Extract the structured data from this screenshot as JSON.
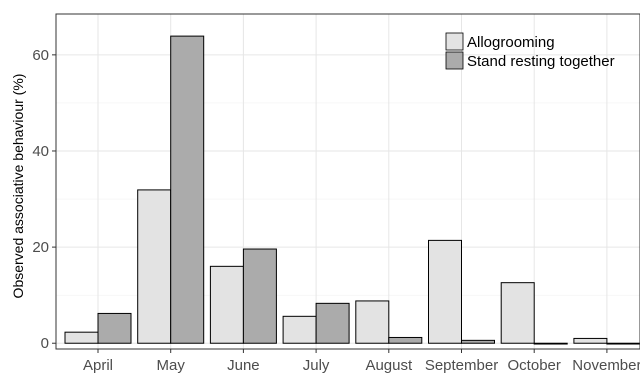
{
  "chart_data": {
    "type": "bar",
    "title": "",
    "xlabel": "",
    "ylabel": "Observed associative behaviour (%)",
    "categories": [
      "April",
      "May",
      "June",
      "July",
      "August",
      "September",
      "October",
      "November"
    ],
    "series": [
      {
        "name": "Allogrooming",
        "color": "#e3e3e3",
        "values": [
          2.3,
          31.9,
          16.0,
          5.6,
          8.8,
          21.4,
          12.6,
          1.0
        ]
      },
      {
        "name": "Stand resting together",
        "color": "#ababab",
        "values": [
          6.2,
          63.9,
          19.6,
          8.3,
          1.2,
          0.6,
          0,
          0
        ]
      }
    ],
    "ylim": [
      -1.2,
      68.5
    ],
    "yticks": [
      0,
      20,
      40,
      60
    ],
    "grid": true,
    "legend_position": "top-right"
  }
}
